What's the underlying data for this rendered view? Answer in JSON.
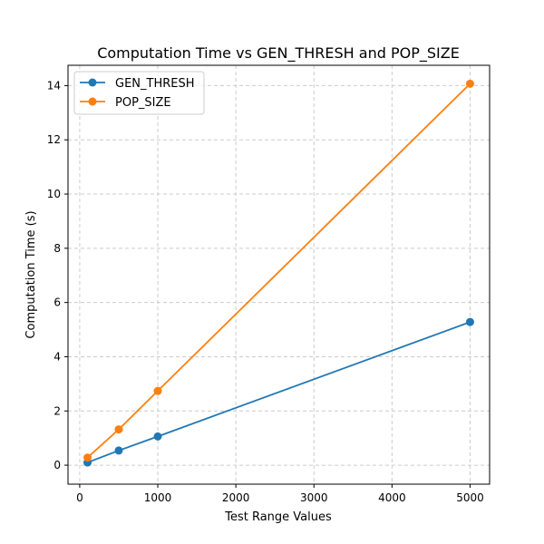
{
  "chart_data": {
    "type": "line",
    "title": "Computation Time vs GEN_THRESH and POP_SIZE",
    "xlabel": "Test Range Values",
    "ylabel": "Computation Time (s)",
    "xlim": [
      -150,
      5250
    ],
    "ylim": [
      -0.7,
      14.75
    ],
    "xticks": [
      0,
      1000,
      2000,
      3000,
      4000,
      5000
    ],
    "yticks": [
      0,
      2,
      4,
      6,
      8,
      10,
      12,
      14
    ],
    "xtick_labels": [
      "0",
      "1000",
      "2000",
      "3000",
      "4000",
      "5000"
    ],
    "ytick_labels": [
      "0",
      "2",
      "4",
      "6",
      "8",
      "10",
      "12",
      "14"
    ],
    "grid": true,
    "legend_position": "top-left",
    "x": [
      100,
      500,
      1000,
      5000
    ],
    "series": [
      {
        "name": "GEN_THRESH",
        "color": "#1f77b4",
        "values": [
          0.1,
          0.54,
          1.06,
          5.28
        ]
      },
      {
        "name": "POP_SIZE",
        "color": "#ff7f0e",
        "values": [
          0.28,
          1.32,
          2.74,
          14.07
        ]
      }
    ]
  }
}
